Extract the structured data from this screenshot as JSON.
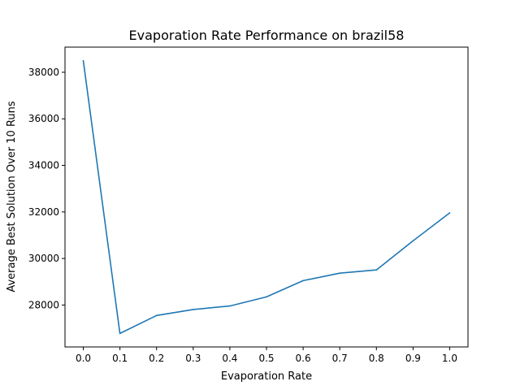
{
  "chart_data": {
    "type": "line",
    "title": "Evaporation Rate Performance on brazil58",
    "xlabel": "Evaporation Rate",
    "ylabel": "Average Best Solution Over 10 Runs",
    "x": [
      0.0,
      0.1,
      0.2,
      0.3,
      0.4,
      0.5,
      0.6,
      0.7,
      0.8,
      0.9,
      1.0
    ],
    "series": [
      {
        "values": [
          38500,
          26780,
          27550,
          27810,
          27960,
          28350,
          29050,
          29370,
          29510,
          30760,
          31960
        ],
        "color": "#1f77b4"
      }
    ],
    "xlim": [
      -0.05,
      1.05
    ],
    "ylim": [
      26200,
      39080
    ],
    "xticks": [
      0.0,
      0.1,
      0.2,
      0.3,
      0.4,
      0.5,
      0.6,
      0.7,
      0.8,
      0.9,
      1.0
    ],
    "xtick_labels": [
      "0.0",
      "0.1",
      "0.2",
      "0.3",
      "0.4",
      "0.5",
      "0.6",
      "0.7",
      "0.8",
      "0.9",
      "1.0"
    ],
    "yticks": [
      28000,
      30000,
      32000,
      34000,
      36000,
      38000
    ],
    "ytick_labels": [
      "28000",
      "30000",
      "32000",
      "34000",
      "36000",
      "38000"
    ],
    "grid": false,
    "legend": false
  }
}
